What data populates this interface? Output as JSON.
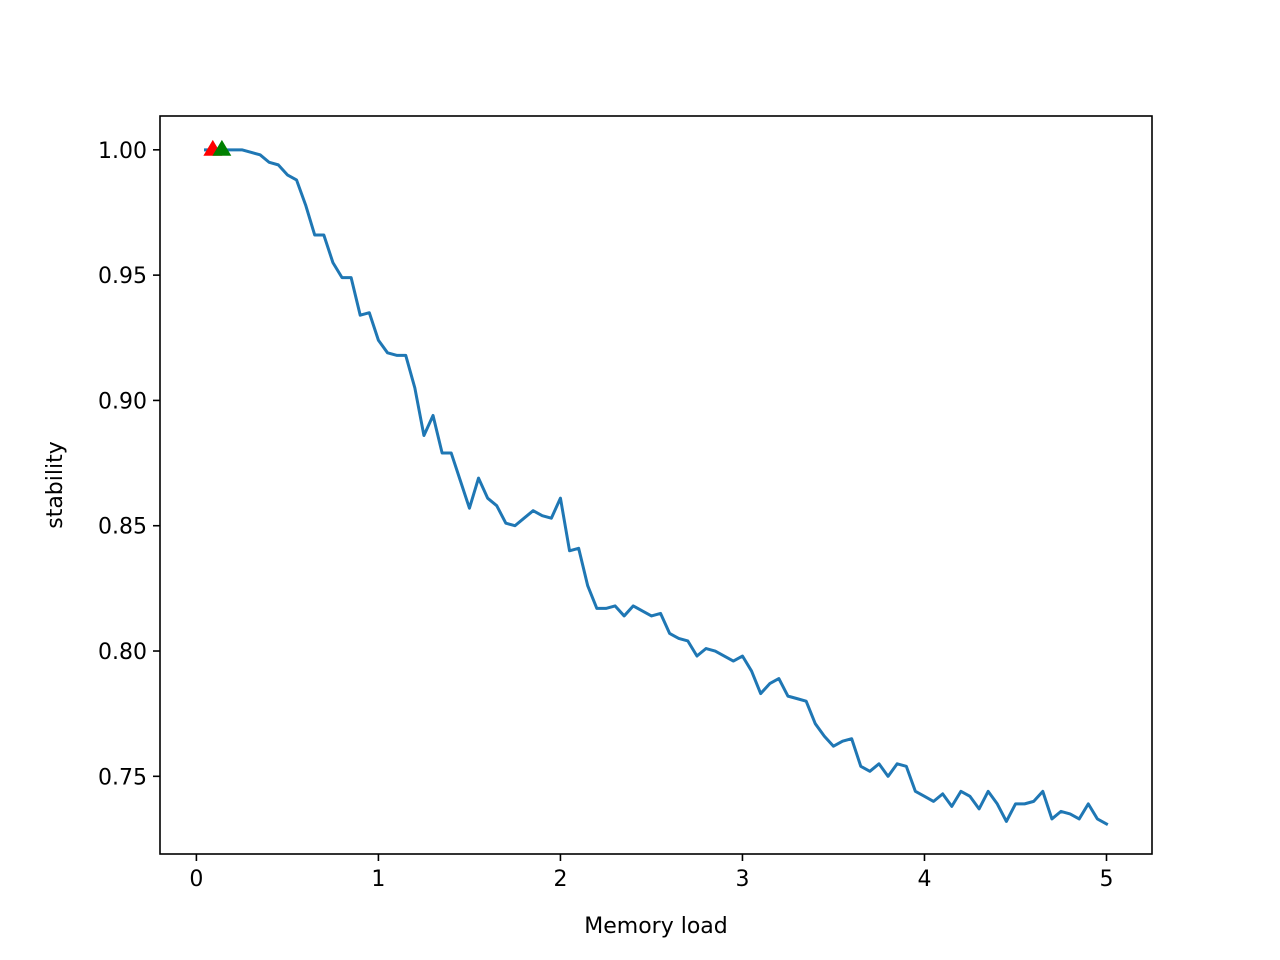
{
  "chart_data": {
    "type": "line",
    "title": "",
    "xlabel": "Memory load",
    "ylabel": "stability",
    "xlim": [
      -0.2,
      5.25
    ],
    "ylim": [
      0.719,
      1.0135
    ],
    "xticks": [
      0,
      1,
      2,
      3,
      4,
      5
    ],
    "xtick_labels": [
      "0",
      "1",
      "2",
      "3",
      "4",
      "5"
    ],
    "yticks": [
      0.75,
      0.8,
      0.85,
      0.9,
      0.95,
      1.0
    ],
    "ytick_labels": [
      "0.75",
      "0.80",
      "0.85",
      "0.90",
      "0.95",
      "1.00"
    ],
    "grid": false,
    "series": [
      {
        "color": "#1f77b4",
        "x": [
          0.05,
          0.1,
          0.15,
          0.2,
          0.25,
          0.3,
          0.35,
          0.4,
          0.45,
          0.5,
          0.55,
          0.6,
          0.65,
          0.7,
          0.75,
          0.8,
          0.85,
          0.9,
          0.95,
          1.0,
          1.05,
          1.1,
          1.15,
          1.2,
          1.25,
          1.3,
          1.35,
          1.4,
          1.45,
          1.5,
          1.55,
          1.6,
          1.65,
          1.7,
          1.75,
          1.8,
          1.85,
          1.9,
          1.95,
          2.0,
          2.05,
          2.1,
          2.15,
          2.2,
          2.25,
          2.3,
          2.35,
          2.4,
          2.45,
          2.5,
          2.55,
          2.6,
          2.65,
          2.7,
          2.75,
          2.8,
          2.85,
          2.9,
          2.95,
          3.0,
          3.05,
          3.1,
          3.15,
          3.2,
          3.25,
          3.3,
          3.35,
          3.4,
          3.45,
          3.5,
          3.55,
          3.6,
          3.65,
          3.7,
          3.75,
          3.8,
          3.85,
          3.9,
          3.95,
          4.0,
          4.05,
          4.1,
          4.15,
          4.2,
          4.25,
          4.3,
          4.35,
          4.4,
          4.45,
          4.5,
          4.55,
          4.6,
          4.65,
          4.7,
          4.75,
          4.8,
          4.85,
          4.9,
          4.95,
          5.0
        ],
        "y": [
          1.0,
          1.0,
          1.0,
          1.0,
          1.0,
          0.999,
          0.998,
          0.995,
          0.994,
          0.99,
          0.988,
          0.978,
          0.966,
          0.966,
          0.955,
          0.949,
          0.949,
          0.934,
          0.935,
          0.924,
          0.919,
          0.918,
          0.918,
          0.905,
          0.886,
          0.894,
          0.879,
          0.879,
          0.868,
          0.857,
          0.869,
          0.861,
          0.858,
          0.851,
          0.85,
          0.853,
          0.856,
          0.854,
          0.853,
          0.861,
          0.84,
          0.841,
          0.826,
          0.817,
          0.817,
          0.818,
          0.814,
          0.818,
          0.816,
          0.814,
          0.815,
          0.807,
          0.805,
          0.804,
          0.798,
          0.801,
          0.8,
          0.798,
          0.796,
          0.798,
          0.792,
          0.783,
          0.787,
          0.789,
          0.782,
          0.781,
          0.78,
          0.771,
          0.766,
          0.762,
          0.764,
          0.765,
          0.754,
          0.752,
          0.755,
          0.75,
          0.755,
          0.754,
          0.744,
          0.742,
          0.74,
          0.743,
          0.738,
          0.744,
          0.742,
          0.737,
          0.744,
          0.739,
          0.732,
          0.739,
          0.739,
          0.74,
          0.744,
          0.733,
          0.736,
          0.735,
          0.733,
          0.739,
          0.733,
          0.731
        ]
      }
    ],
    "markers": [
      {
        "x": 0.09,
        "y": 1.0,
        "color": "#ff0000",
        "shape": "triangle-up"
      },
      {
        "x": 0.14,
        "y": 1.0,
        "color": "#008000",
        "shape": "triangle-up"
      }
    ]
  }
}
